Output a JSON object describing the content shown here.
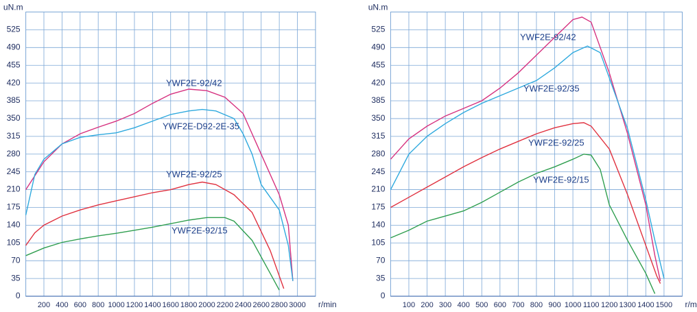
{
  "chart_data": [
    {
      "type": "line",
      "y_label": "uN.m",
      "x_label": "r/min",
      "xlim": [
        0,
        3200
      ],
      "ylim": [
        0,
        560
      ],
      "xticks": [
        200,
        400,
        600,
        800,
        1000,
        1200,
        1400,
        1600,
        1800,
        2000,
        2200,
        2400,
        2600,
        2800,
        3000
      ],
      "yticks": [
        0,
        35,
        70,
        105,
        140,
        175,
        210,
        245,
        280,
        315,
        350,
        385,
        420,
        455,
        490,
        525
      ],
      "grid": true,
      "series": [
        {
          "name": "YWF2E-92/42",
          "color": "#d6317f",
          "x": [
            0,
            200,
            400,
            600,
            800,
            1000,
            1200,
            1400,
            1600,
            1800,
            2000,
            2200,
            2400,
            2600,
            2800,
            2900,
            2950
          ],
          "values": [
            210,
            265,
            300,
            320,
            333,
            345,
            360,
            380,
            398,
            408,
            405,
            392,
            360,
            280,
            200,
            140,
            30
          ]
        },
        {
          "name": "YWF2E-D92-2E-35",
          "color": "#2ea9de",
          "x": [
            0,
            100,
            200,
            400,
            600,
            800,
            1000,
            1200,
            1400,
            1600,
            1800,
            1950,
            2100,
            2300,
            2400,
            2500,
            2600,
            2800,
            2900,
            2950
          ],
          "values": [
            160,
            240,
            270,
            300,
            313,
            318,
            322,
            332,
            345,
            358,
            365,
            368,
            365,
            350,
            320,
            280,
            220,
            170,
            100,
            30
          ]
        },
        {
          "name": "YWF2E-92/25",
          "color": "#e0313f",
          "x": [
            0,
            100,
            200,
            400,
            600,
            800,
            1000,
            1200,
            1400,
            1600,
            1800,
            1950,
            2100,
            2300,
            2500,
            2700,
            2850
          ],
          "values": [
            100,
            125,
            140,
            158,
            170,
            180,
            188,
            196,
            204,
            210,
            220,
            225,
            220,
            200,
            165,
            90,
            15
          ]
        },
        {
          "name": "YWF2E-92/15",
          "color": "#2f9e4f",
          "x": [
            0,
            200,
            400,
            600,
            800,
            1000,
            1200,
            1400,
            1600,
            1800,
            2000,
            2200,
            2300,
            2500,
            2700,
            2800
          ],
          "values": [
            80,
            95,
            106,
            113,
            119,
            124,
            130,
            136,
            143,
            150,
            155,
            155,
            148,
            110,
            45,
            12
          ]
        }
      ]
    },
    {
      "type": "line",
      "y_label": "uN.m",
      "x_label": "r/min",
      "xlim": [
        0,
        1600
      ],
      "ylim": [
        0,
        560
      ],
      "xticks": [
        100,
        200,
        300,
        400,
        500,
        600,
        700,
        800,
        900,
        1000,
        1100,
        1200,
        1300,
        1400,
        1500
      ],
      "yticks": [
        0,
        35,
        70,
        105,
        140,
        175,
        210,
        245,
        280,
        315,
        350,
        385,
        420,
        455,
        490,
        525
      ],
      "grid": true,
      "series": [
        {
          "name": "YWF2E-92/42",
          "color": "#d6317f",
          "x": [
            0,
            100,
            200,
            300,
            400,
            500,
            600,
            700,
            800,
            900,
            1000,
            1050,
            1100,
            1200,
            1300,
            1400,
            1450,
            1480
          ],
          "values": [
            270,
            310,
            335,
            355,
            370,
            385,
            410,
            440,
            475,
            510,
            545,
            550,
            540,
            440,
            320,
            180,
            80,
            30
          ]
        },
        {
          "name": "YWF2E-92/35",
          "color": "#2ea9de",
          "x": [
            0,
            100,
            200,
            300,
            400,
            500,
            600,
            700,
            800,
            900,
            1000,
            1080,
            1150,
            1200,
            1300,
            1400,
            1450,
            1500
          ],
          "values": [
            210,
            280,
            315,
            340,
            362,
            380,
            395,
            410,
            425,
            450,
            480,
            493,
            480,
            430,
            330,
            190,
            110,
            35
          ]
        },
        {
          "name": "YWF2E-92/25",
          "color": "#e0313f",
          "x": [
            0,
            100,
            200,
            300,
            400,
            500,
            600,
            700,
            800,
            900,
            1000,
            1060,
            1100,
            1200,
            1300,
            1400,
            1460,
            1480
          ],
          "values": [
            175,
            195,
            215,
            235,
            255,
            273,
            290,
            305,
            320,
            332,
            340,
            342,
            335,
            290,
            200,
            100,
            40,
            25
          ]
        },
        {
          "name": "YWF2E-92/15",
          "color": "#2f9e4f",
          "x": [
            0,
            100,
            200,
            300,
            400,
            500,
            600,
            700,
            800,
            900,
            1000,
            1060,
            1100,
            1150,
            1200,
            1300,
            1400,
            1450
          ],
          "values": [
            115,
            130,
            148,
            158,
            168,
            185,
            205,
            225,
            242,
            255,
            270,
            280,
            278,
            250,
            180,
            110,
            45,
            5
          ]
        }
      ]
    }
  ]
}
